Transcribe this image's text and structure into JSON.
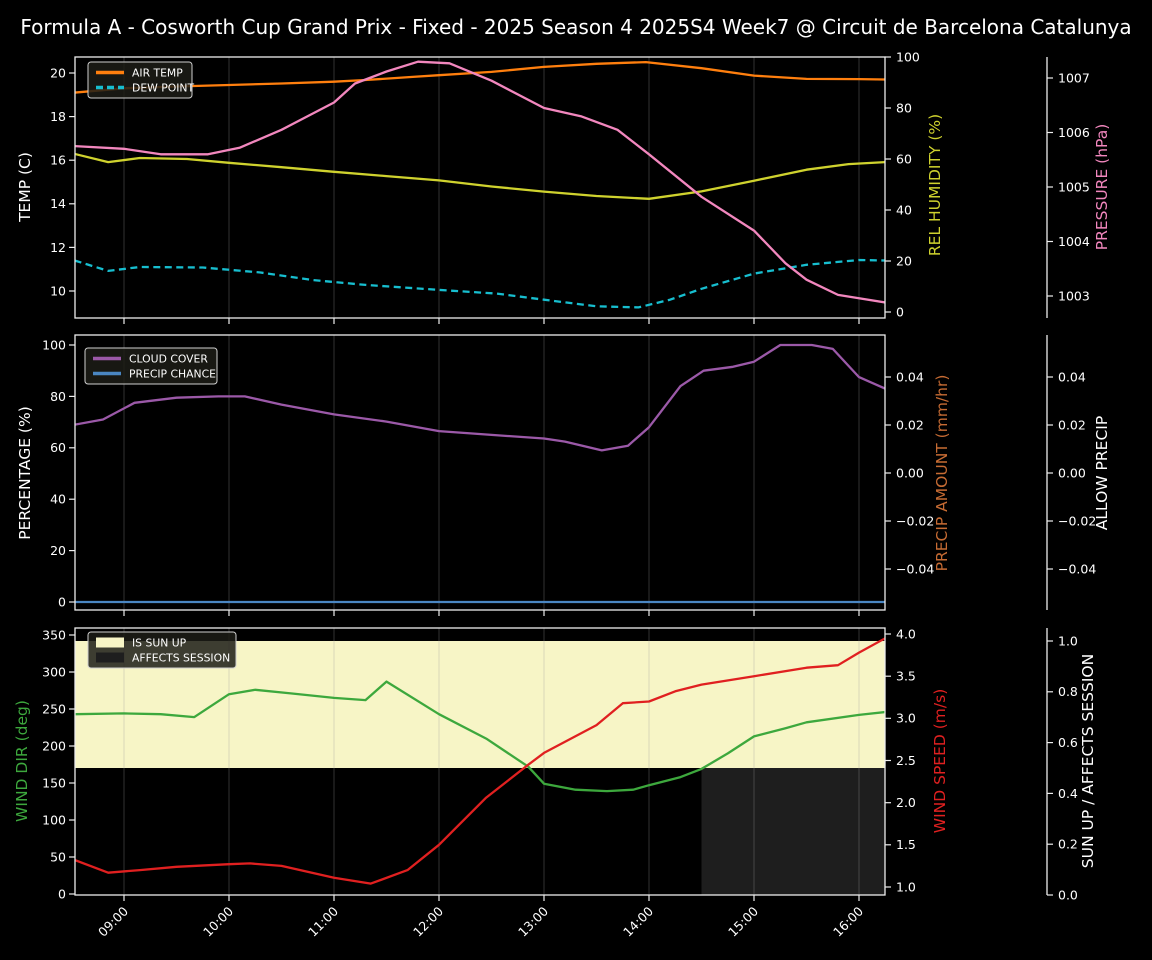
{
  "title": "Formula A - Cosworth Cup Grand Prix - Fixed - 2025 Season 4 2025S4 Week7 @ Circuit de Barcelona Catalunya",
  "colors": {
    "background": "#000000",
    "text": "#ffffff",
    "grid": "#9a9a9a",
    "spine": "#eeeeee",
    "legend_fill": "rgba(28,28,22,0.85)",
    "legend_border": "#cfcfcf",
    "sun_up_fill": "#f7f5c6",
    "affects_session_fill": "#1e1e1e"
  },
  "x_axis": {
    "hours": [
      9,
      10,
      11,
      12,
      13,
      14,
      15,
      16
    ],
    "tick_labels": [
      "09:00",
      "10:00",
      "11:00",
      "12:00",
      "13:00",
      "14:00",
      "15:00",
      "16:00"
    ],
    "range_hours": [
      8.53,
      16.25
    ]
  },
  "chart_data": [
    {
      "type": "line",
      "name": "panel-temperature-humidity-pressure",
      "axes": [
        {
          "id": "temp",
          "label": "TEMP (C)",
          "color": "#ffffff",
          "ticks": [
            {
              "v": 10,
              "label": "10"
            },
            {
              "v": 12,
              "label": "12"
            },
            {
              "v": 14,
              "label": "14"
            },
            {
              "v": 16,
              "label": "16"
            },
            {
              "v": 18,
              "label": "18"
            },
            {
              "v": 20,
              "label": "20"
            }
          ]
        },
        {
          "id": "hum",
          "label": "REL HUMIDITY (%)",
          "color": "#cfd22e",
          "ticks": [
            {
              "v": 0,
              "label": "0"
            },
            {
              "v": 20,
              "label": "20"
            },
            {
              "v": 40,
              "label": "40"
            },
            {
              "v": 60,
              "label": "60"
            },
            {
              "v": 80,
              "label": "80"
            },
            {
              "v": 100,
              "label": "100"
            }
          ]
        },
        {
          "id": "press",
          "label": "PRESSURE (hPa)",
          "color": "#f287be",
          "ticks": [
            {
              "v": 1003,
              "label": "1003"
            },
            {
              "v": 1004,
              "label": "1004"
            },
            {
              "v": 1005,
              "label": "1005"
            },
            {
              "v": 1006,
              "label": "1006"
            },
            {
              "v": 1007,
              "label": "1007"
            }
          ]
        }
      ],
      "series": [
        {
          "name": "AIR TEMP",
          "axis": "temp",
          "color": "#ff7f0e",
          "dashed": false,
          "points": [
            [
              8.53,
              19.1
            ],
            [
              9,
              19.3
            ],
            [
              9.5,
              19.38
            ],
            [
              10,
              19.45
            ],
            [
              10.5,
              19.52
            ],
            [
              11,
              19.6
            ],
            [
              11.3,
              19.68
            ],
            [
              11.75,
              19.82
            ],
            [
              12,
              19.9
            ],
            [
              12.5,
              20.05
            ],
            [
              13,
              20.28
            ],
            [
              13.5,
              20.42
            ],
            [
              13.97,
              20.5
            ],
            [
              14.5,
              20.22
            ],
            [
              15,
              19.88
            ],
            [
              15.5,
              19.73
            ],
            [
              16,
              19.72
            ],
            [
              16.25,
              19.7
            ]
          ]
        },
        {
          "name": "DEW POINT",
          "axis": "temp",
          "color": "#17becf",
          "dashed": true,
          "points": [
            [
              8.53,
              11.4
            ],
            [
              8.85,
              10.92
            ],
            [
              9.15,
              11.1
            ],
            [
              9.75,
              11.08
            ],
            [
              10.3,
              10.85
            ],
            [
              10.8,
              10.5
            ],
            [
              11.3,
              10.28
            ],
            [
              12,
              10.05
            ],
            [
              12.55,
              9.88
            ],
            [
              13,
              9.6
            ],
            [
              13.5,
              9.3
            ],
            [
              13.9,
              9.25
            ],
            [
              14.2,
              9.6
            ],
            [
              14.5,
              10.1
            ],
            [
              15,
              10.8
            ],
            [
              15.5,
              11.2
            ],
            [
              16,
              11.42
            ],
            [
              16.25,
              11.4
            ]
          ]
        },
        {
          "name": "REL HUMIDITY",
          "axis": "hum",
          "color": "#cfd22e",
          "dashed": false,
          "points": [
            [
              8.53,
              62
            ],
            [
              8.85,
              58.8
            ],
            [
              9.15,
              60.4
            ],
            [
              9.6,
              60
            ],
            [
              10,
              58.5
            ],
            [
              10.5,
              56.8
            ],
            [
              11,
              55
            ],
            [
              11.5,
              53.3
            ],
            [
              12,
              51.6
            ],
            [
              12.5,
              49.2
            ],
            [
              13,
              47.2
            ],
            [
              13.5,
              45.5
            ],
            [
              14,
              44.4
            ],
            [
              14.5,
              47.3
            ],
            [
              15,
              51.5
            ],
            [
              15.5,
              55.8
            ],
            [
              15.9,
              58
            ],
            [
              16.25,
              58.8
            ]
          ]
        },
        {
          "name": "PRESSURE",
          "axis": "press",
          "color": "#f287be",
          "dashed": false,
          "points": [
            [
              8.53,
              1005.75
            ],
            [
              9,
              1005.7
            ],
            [
              9.35,
              1005.6
            ],
            [
              9.8,
              1005.6
            ],
            [
              10.1,
              1005.72
            ],
            [
              10.5,
              1006.05
            ],
            [
              11,
              1006.55
            ],
            [
              11.2,
              1006.9
            ],
            [
              11.5,
              1007.12
            ],
            [
              11.8,
              1007.3
            ],
            [
              12.1,
              1007.27
            ],
            [
              12.5,
              1006.95
            ],
            [
              13,
              1006.45
            ],
            [
              13.35,
              1006.3
            ],
            [
              13.7,
              1006.05
            ],
            [
              14,
              1005.6
            ],
            [
              14.5,
              1004.82
            ],
            [
              15,
              1004.2
            ],
            [
              15.3,
              1003.6
            ],
            [
              15.5,
              1003.3
            ],
            [
              15.8,
              1003.02
            ],
            [
              16,
              1002.96
            ],
            [
              16.25,
              1002.88
            ]
          ]
        }
      ],
      "legend": [
        {
          "label": "AIR TEMP",
          "swatch": "line",
          "color": "#ff7f0e",
          "dashed": false
        },
        {
          "label": "DEW POINT",
          "swatch": "line",
          "color": "#17becf",
          "dashed": true
        }
      ]
    },
    {
      "type": "line",
      "name": "panel-cloud-precip",
      "axes": [
        {
          "id": "pct",
          "label": "PERCENTAGE (%)",
          "color": "#ffffff",
          "ticks": [
            {
              "v": 0,
              "label": "0"
            },
            {
              "v": 20,
              "label": "20"
            },
            {
              "v": 40,
              "label": "40"
            },
            {
              "v": 60,
              "label": "60"
            },
            {
              "v": 80,
              "label": "80"
            },
            {
              "v": 100,
              "label": "100"
            }
          ]
        },
        {
          "id": "pamt",
          "label": "PRECIP AMOUNT (mm/hr)",
          "color": "#c66b33",
          "ticks": [
            {
              "v": 0.04,
              "label": "0.04"
            },
            {
              "v": 0.02,
              "label": "0.02"
            },
            {
              "v": 0,
              "label": "0.00"
            },
            {
              "v": -0.02,
              "label": "−0.02"
            },
            {
              "v": -0.04,
              "label": "−0.04"
            }
          ]
        },
        {
          "id": "allow",
          "label": "ALLOW PRECIP",
          "color": "#ffffff",
          "ticks": [
            {
              "v": 0.04,
              "label": "0.04"
            },
            {
              "v": 0.02,
              "label": "0.02"
            },
            {
              "v": 0,
              "label": "0.00"
            },
            {
              "v": -0.02,
              "label": "−0.02"
            },
            {
              "v": -0.04,
              "label": "−0.04"
            }
          ]
        }
      ],
      "series": [
        {
          "name": "CLOUD COVER",
          "axis": "pct",
          "color": "#9b59a8",
          "dashed": false,
          "points": [
            [
              8.53,
              69
            ],
            [
              8.8,
              71
            ],
            [
              9.1,
              77.5
            ],
            [
              9.5,
              79.5
            ],
            [
              9.9,
              80
            ],
            [
              10.15,
              80
            ],
            [
              10.5,
              76.8
            ],
            [
              11,
              73
            ],
            [
              11.5,
              70.2
            ],
            [
              12,
              66.5
            ],
            [
              12.5,
              65
            ],
            [
              13,
              63.6
            ],
            [
              13.2,
              62.4
            ],
            [
              13.55,
              59
            ],
            [
              13.8,
              60.8
            ],
            [
              14,
              68
            ],
            [
              14.3,
              84
            ],
            [
              14.52,
              90
            ],
            [
              14.8,
              91.5
            ],
            [
              15,
              93.5
            ],
            [
              15.25,
              100
            ],
            [
              15.55,
              100
            ],
            [
              15.75,
              98.5
            ],
            [
              16,
              87.5
            ],
            [
              16.25,
              83
            ]
          ]
        },
        {
          "name": "PRECIP CHANCE",
          "axis": "pct",
          "color": "#4a86c2",
          "dashed": false,
          "points": [
            [
              8.53,
              0
            ],
            [
              16.25,
              0
            ]
          ]
        }
      ],
      "legend": [
        {
          "label": "CLOUD COVER",
          "swatch": "line",
          "color": "#9b59a8",
          "dashed": false
        },
        {
          "label": "PRECIP CHANCE",
          "swatch": "line",
          "color": "#4a86c2",
          "dashed": false
        }
      ]
    },
    {
      "type": "line",
      "name": "panel-wind-sun",
      "axes": [
        {
          "id": "wdir",
          "label": "WIND DIR (deg)",
          "color": "#3da83d",
          "ticks": [
            {
              "v": 0,
              "label": "0"
            },
            {
              "v": 50,
              "label": "50"
            },
            {
              "v": 100,
              "label": "100"
            },
            {
              "v": 150,
              "label": "150"
            },
            {
              "v": 200,
              "label": "200"
            },
            {
              "v": 250,
              "label": "250"
            },
            {
              "v": 300,
              "label": "300"
            },
            {
              "v": 350,
              "label": "350"
            }
          ]
        },
        {
          "id": "wspd",
          "label": "WIND SPEED (m/s)",
          "color": "#e02020",
          "ticks": [
            {
              "v": 1,
              "label": "1.0"
            },
            {
              "v": 1.5,
              "label": "1.5"
            },
            {
              "v": 2,
              "label": "2.0"
            },
            {
              "v": 2.5,
              "label": "2.5"
            },
            {
              "v": 3,
              "label": "3.0"
            },
            {
              "v": 3.5,
              "label": "3.5"
            },
            {
              "v": 4,
              "label": "4.0"
            }
          ]
        },
        {
          "id": "sun",
          "label": "SUN UP / AFFECTS SESSION",
          "color": "#ffffff",
          "ticks": [
            {
              "v": 0,
              "label": "0.0"
            },
            {
              "v": 0.2,
              "label": "0.2"
            },
            {
              "v": 0.4,
              "label": "0.4"
            },
            {
              "v": 0.6,
              "label": "0.6"
            },
            {
              "v": 0.8,
              "label": "0.8"
            },
            {
              "v": 1,
              "label": "1.0"
            }
          ]
        }
      ],
      "bands": [
        {
          "name": "IS SUN UP",
          "axis": "sun",
          "x": [
            8.53,
            16.25
          ],
          "y": [
            0.5,
            1.0
          ],
          "color": "#f7f5c6"
        },
        {
          "name": "AFFECTS SESSION",
          "axis": "sun",
          "x": [
            14.5,
            16.25
          ],
          "y": [
            0.0,
            0.5
          ],
          "color": "#1e1e1e"
        }
      ],
      "series": [
        {
          "name": "WIND DIR",
          "axis": "wdir",
          "color": "#3da83d",
          "dashed": false,
          "points": [
            [
              8.53,
              243
            ],
            [
              9,
              244
            ],
            [
              9.35,
              243
            ],
            [
              9.67,
              239
            ],
            [
              10,
              270
            ],
            [
              10.25,
              276
            ],
            [
              10.6,
              271
            ],
            [
              11,
              265
            ],
            [
              11.3,
              262
            ],
            [
              11.5,
              287
            ],
            [
              12,
              243
            ],
            [
              12.45,
              210
            ],
            [
              12.85,
              172
            ],
            [
              13,
              149
            ],
            [
              13.3,
              141
            ],
            [
              13.6,
              139
            ],
            [
              13.85,
              141
            ],
            [
              14,
              147
            ],
            [
              14.3,
              158
            ],
            [
              14.5,
              169
            ],
            [
              14.75,
              190
            ],
            [
              15,
              213
            ],
            [
              15.3,
              224
            ],
            [
              15.5,
              232
            ],
            [
              16,
              242
            ],
            [
              16.25,
              246
            ]
          ]
        },
        {
          "name": "WIND SPEED",
          "axis": "wspd",
          "color": "#e02020",
          "dashed": false,
          "points": [
            [
              8.53,
              1.32
            ],
            [
              8.85,
              1.17
            ],
            [
              9.15,
              1.2
            ],
            [
              9.5,
              1.24
            ],
            [
              10,
              1.27
            ],
            [
              10.2,
              1.28
            ],
            [
              10.5,
              1.25
            ],
            [
              11,
              1.11
            ],
            [
              11.35,
              1.04
            ],
            [
              11.7,
              1.2
            ],
            [
              12,
              1.5
            ],
            [
              12.45,
              2.06
            ],
            [
              12.85,
              2.45
            ],
            [
              13,
              2.59
            ],
            [
              13.5,
              2.92
            ],
            [
              13.75,
              3.18
            ],
            [
              14,
              3.2
            ],
            [
              14.25,
              3.32
            ],
            [
              14.5,
              3.4
            ],
            [
              15,
              3.5
            ],
            [
              15.5,
              3.6
            ],
            [
              15.8,
              3.63
            ],
            [
              16,
              3.78
            ],
            [
              16.25,
              3.95
            ]
          ]
        }
      ],
      "legend": [
        {
          "label": "IS SUN UP",
          "swatch": "patch",
          "color": "#f7f5c6",
          "dashed": false
        },
        {
          "label": "AFFECTS SESSION",
          "swatch": "patch",
          "color": "#1e1e1e",
          "dashed": false
        }
      ]
    }
  ]
}
